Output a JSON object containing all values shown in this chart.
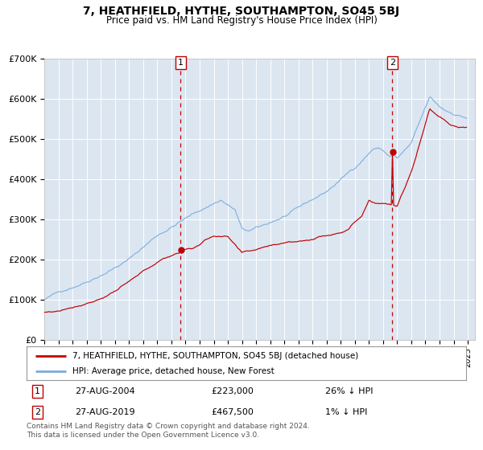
{
  "title": "7, HEATHFIELD, HYTHE, SOUTHAMPTON, SO45 5BJ",
  "subtitle": "Price paid vs. HM Land Registry's House Price Index (HPI)",
  "legend_line1": "7, HEATHFIELD, HYTHE, SOUTHAMPTON, SO45 5BJ (detached house)",
  "legend_line2": "HPI: Average price, detached house, New Forest",
  "annotation1_label": "1",
  "annotation1_text1": "27-AUG-2004",
  "annotation1_text2": "£223,000",
  "annotation1_text3": "26% ↓ HPI",
  "annotation2_label": "2",
  "annotation2_text1": "27-AUG-2019",
  "annotation2_text2": "£467,500",
  "annotation2_text3": "1% ↓ HPI",
  "footer": "Contains HM Land Registry data © Crown copyright and database right 2024.\nThis data is licensed under the Open Government Licence v3.0.",
  "hpi_color": "#7aabdc",
  "price_color": "#c00000",
  "annotation_color": "#c00000",
  "background_color": "#dce6f1",
  "ylim": [
    0,
    700000
  ],
  "yticks": [
    0,
    100000,
    200000,
    300000,
    400000,
    500000,
    600000,
    700000
  ],
  "ytick_labels": [
    "£0",
    "£100K",
    "£200K",
    "£300K",
    "£400K",
    "£500K",
    "£600K",
    "£700K"
  ],
  "xstart_year": 1995,
  "xend_year": 2025,
  "sale1_year": 2004.646,
  "sale1_price": 223000,
  "sale2_year": 2019.646,
  "sale2_price": 467500
}
